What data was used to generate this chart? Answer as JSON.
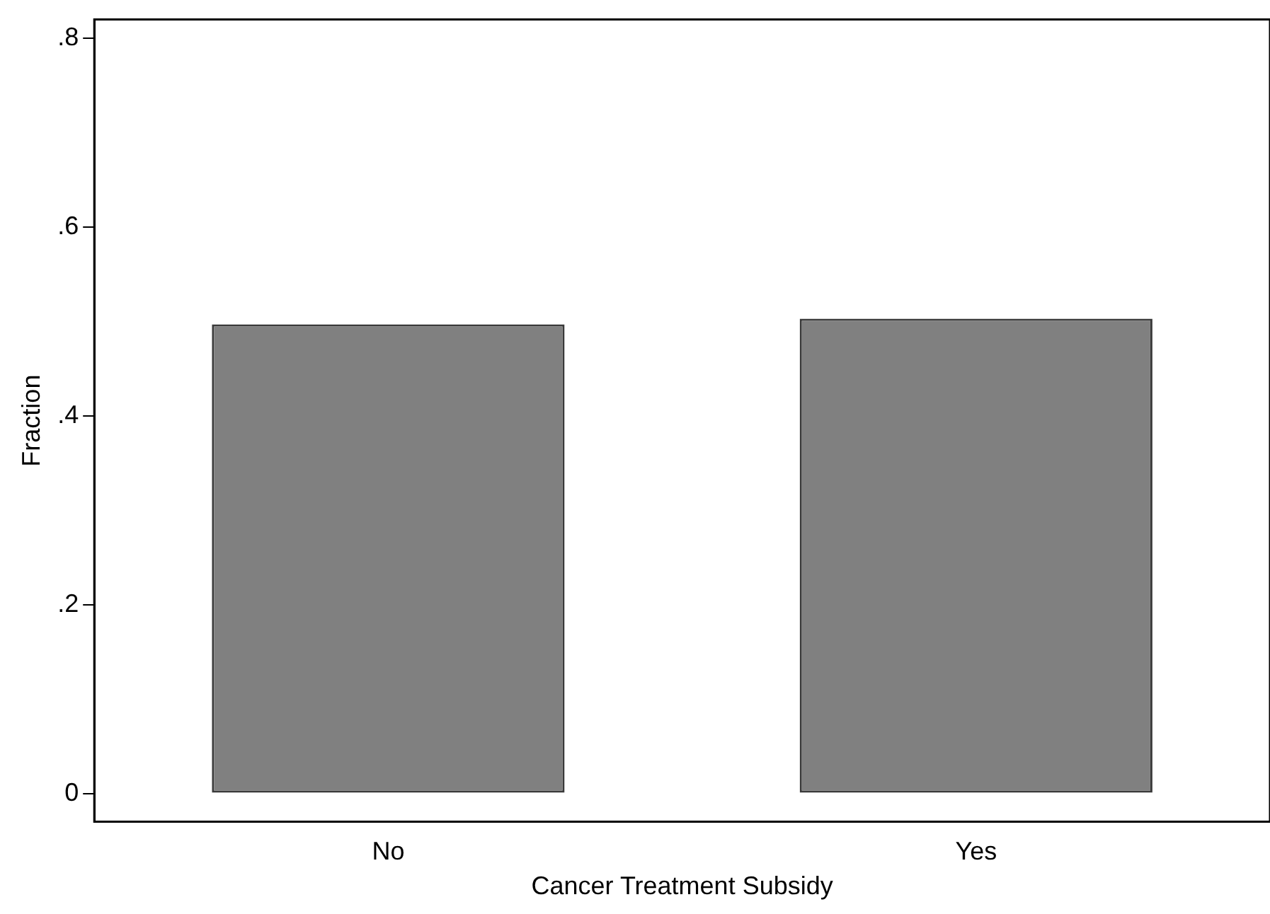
{
  "chart_data": {
    "type": "bar",
    "xlabel": "Cancer Treatment Subsidy",
    "ylabel": "Fraction",
    "categories": [
      "No",
      "Yes"
    ],
    "values": [
      0.497,
      0.503
    ],
    "color": "#808080",
    "ylim": [
      -0.03,
      0.82
    ],
    "yticks": [
      0,
      {
        "value": 0.2,
        "label": ".2"
      },
      {
        "value": 0.4,
        "label": ".4"
      },
      {
        "value": 0.6,
        "label": ".6"
      },
      {
        "value": 0.8,
        "label": ".8"
      }
    ],
    "grid": false,
    "legend": false
  }
}
